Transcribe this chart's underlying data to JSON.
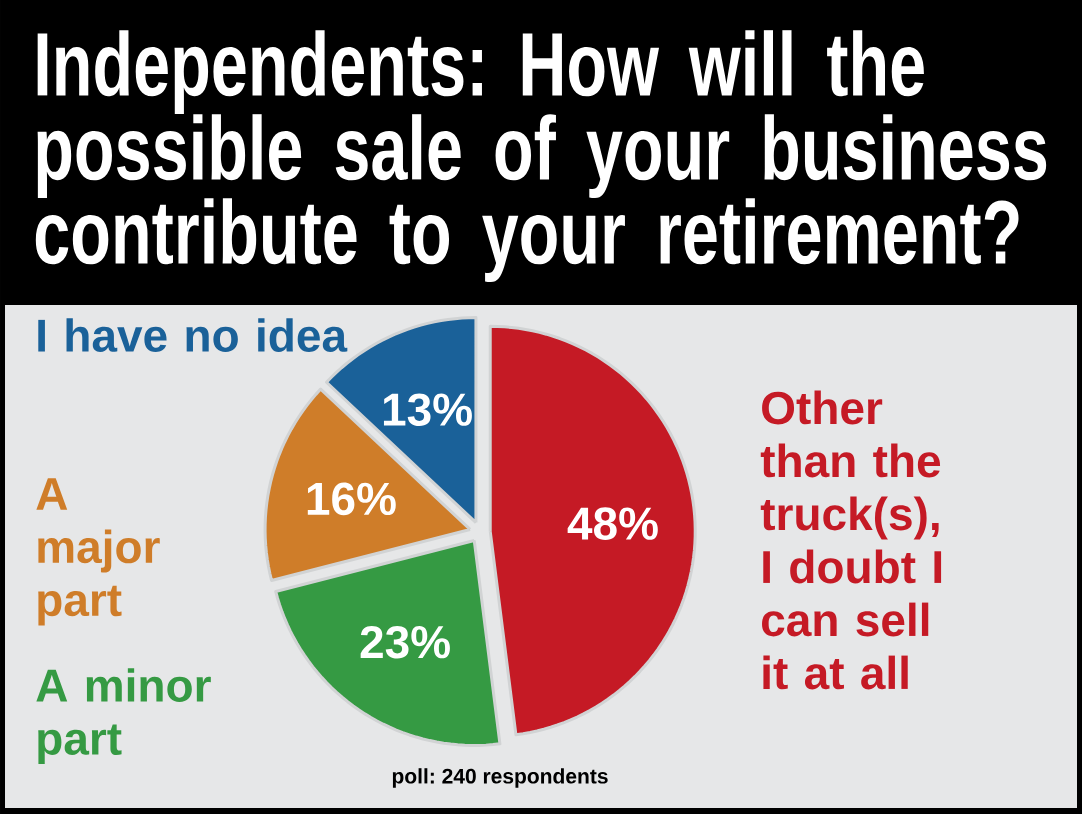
{
  "chart_data": {
    "type": "pie",
    "title": "Independents: How will the possible sale of your business contribute to your retirement?",
    "categories": [
      "Other than the truck(s), I doubt I can sell it at all",
      "A minor part",
      "A major part",
      "I have no idea"
    ],
    "values": [
      48,
      23,
      16,
      13
    ],
    "colors": [
      "#c51a25",
      "#359a43",
      "#cf7d29",
      "#1a6199"
    ],
    "value_labels": [
      "48%",
      "23%",
      "16%",
      "13%"
    ],
    "annotations": [
      "poll: 240 respondents"
    ]
  }
}
